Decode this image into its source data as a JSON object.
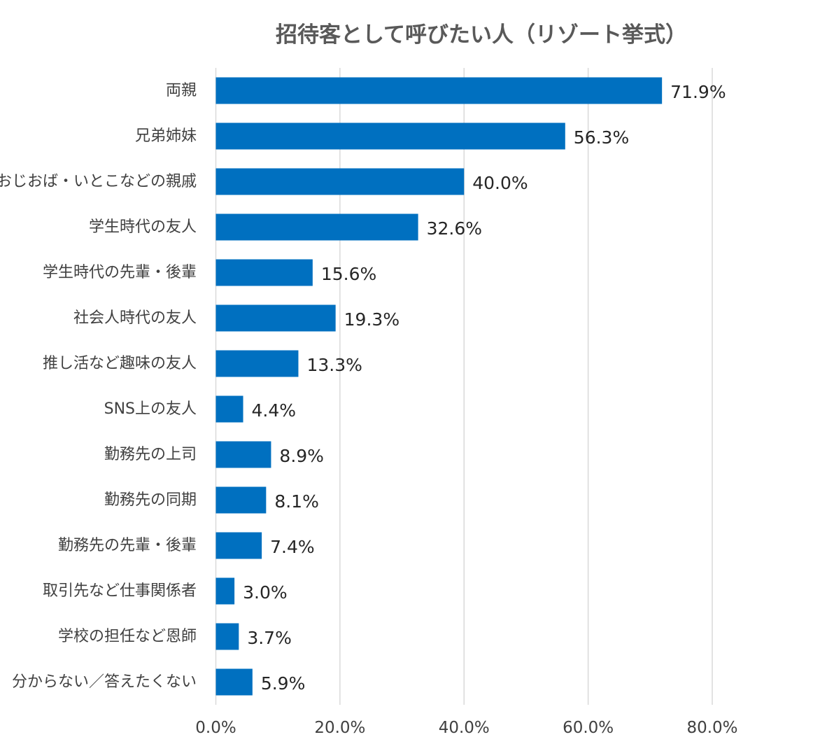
{
  "chart_data": {
    "type": "bar",
    "orientation": "horizontal",
    "title": "招待客として呼びたい人（リゾート挙式）",
    "xlabel": "",
    "ylabel": "",
    "xlim": [
      0,
      80
    ],
    "ticks": [
      0,
      20,
      40,
      60,
      80
    ],
    "tick_labels": [
      "0.0%",
      "20.0%",
      "40.0%",
      "60.0%",
      "80.0%"
    ],
    "grid": true,
    "bar_color": "#0070C0",
    "categories": [
      "両親",
      "兄弟姉妹",
      "おじおば・いとこなどの親戚",
      "学生時代の友人",
      "学生時代の先輩・後輩",
      "社会人時代の友人",
      "推し活など趣味の友人",
      "SNS上の友人",
      "勤務先の上司",
      "勤務先の同期",
      "勤務先の先輩・後輩",
      "取引先など仕事関係者",
      "学校の担任など恩師",
      "分からない／答えたくない"
    ],
    "values": [
      71.9,
      56.3,
      40.0,
      32.6,
      15.6,
      19.3,
      13.3,
      4.4,
      8.9,
      8.1,
      7.4,
      3.0,
      3.7,
      5.9
    ],
    "value_labels": [
      "71.9%",
      "56.3%",
      "40.0%",
      "32.6%",
      "15.6%",
      "19.3%",
      "13.3%",
      "4.4%",
      "8.9%",
      "8.1%",
      "7.4%",
      "3.0%",
      "3.7%",
      "5.9%"
    ]
  }
}
